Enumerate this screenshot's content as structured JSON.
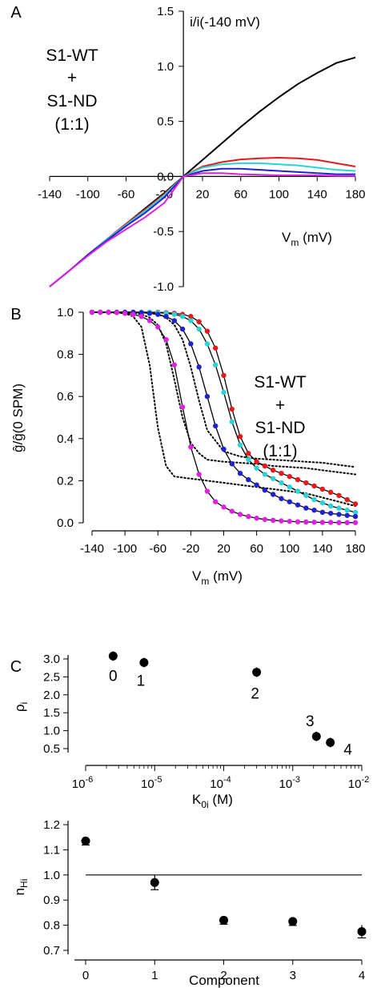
{
  "figure": {
    "panels": {
      "A": {
        "letter": "A",
        "annotation": [
          "S1-WT",
          "+",
          "S1-ND",
          "(1:1)"
        ]
      },
      "B": {
        "letter": "B",
        "annotation": [
          "S1-WT",
          "+",
          "S1-ND",
          "(1:1)"
        ]
      },
      "C": {
        "letter": "C"
      }
    }
  },
  "chart_data": [
    {
      "id": "A",
      "type": "line",
      "ylabel": "i/i(-140 mV)",
      "xlabel_main": "V",
      "xlabel_sub": "m",
      "xlabel_unit": " (mV)",
      "xlim": [
        -140,
        180
      ],
      "ylim": [
        -1.0,
        1.5
      ],
      "x_ticks": [
        -140,
        -100,
        -60,
        -20,
        20,
        60,
        100,
        140,
        180
      ],
      "x_tick_labels": [
        "-140",
        "-100",
        "-60",
        "-20",
        "20",
        "60",
        "100",
        "140",
        "180"
      ],
      "y_ticks": [
        -1.0,
        -0.5,
        0.0,
        0.5,
        1.0,
        1.5
      ],
      "y_tick_labels": [
        "-1.0",
        "-0.5",
        "0.0",
        "0.5",
        "1.0",
        "1.5"
      ],
      "x": [
        -140,
        -120,
        -100,
        -80,
        -60,
        -40,
        -20,
        0,
        20,
        40,
        60,
        80,
        100,
        120,
        140,
        160,
        180
      ],
      "series": [
        {
          "color": "#000000",
          "y": [
            -1.0,
            -0.86,
            -0.71,
            -0.57,
            -0.43,
            -0.29,
            -0.15,
            0.0,
            0.15,
            0.3,
            0.45,
            0.59,
            0.72,
            0.84,
            0.94,
            1.03,
            1.08
          ]
        },
        {
          "color": "#e41a1c",
          "y": [
            -1.0,
            -0.86,
            -0.71,
            -0.57,
            -0.43,
            -0.3,
            -0.16,
            0.0,
            0.09,
            0.13,
            0.155,
            0.165,
            0.17,
            0.165,
            0.15,
            0.12,
            0.09
          ]
        },
        {
          "color": "#2ad4d4",
          "y": [
            -1.0,
            -0.86,
            -0.71,
            -0.57,
            -0.44,
            -0.31,
            -0.17,
            0.0,
            0.08,
            0.11,
            0.12,
            0.12,
            0.11,
            0.1,
            0.08,
            0.06,
            0.05
          ]
        },
        {
          "color": "#2222cc",
          "y": [
            -1.0,
            -0.86,
            -0.71,
            -0.58,
            -0.45,
            -0.33,
            -0.19,
            0.0,
            0.05,
            0.07,
            0.07,
            0.06,
            0.05,
            0.04,
            0.03,
            0.02,
            0.02
          ]
        },
        {
          "color": "#dd22dd",
          "y": [
            -1.0,
            -0.86,
            -0.72,
            -0.59,
            -0.48,
            -0.37,
            -0.24,
            0.0,
            0.03,
            0.03,
            0.02,
            0.015,
            0.01,
            0.01,
            0.01,
            0.005,
            0.005
          ]
        }
      ]
    },
    {
      "id": "B",
      "type": "scatter",
      "ylabel": "ĝ/ĝ(0 SPM)",
      "xlabel_main": "V",
      "xlabel_sub": "m",
      "xlabel_unit": " (mV)",
      "xlim": [
        -140,
        180
      ],
      "ylim": [
        0.0,
        1.0
      ],
      "x_ticks": [
        -140,
        -100,
        -60,
        -20,
        20,
        60,
        100,
        140,
        180
      ],
      "x_tick_labels": [
        "-140",
        "-100",
        "-60",
        "-20",
        "20",
        "60",
        "100",
        "140",
        "180"
      ],
      "y_ticks": [
        0.0,
        0.2,
        0.4,
        0.6,
        0.8,
        1.0
      ],
      "y_tick_labels": [
        "0.0",
        "0.2",
        "0.4",
        "0.6",
        "0.8",
        "1.0"
      ],
      "x_points": [
        -140,
        -130,
        -120,
        -110,
        -100,
        -90,
        -80,
        -70,
        -60,
        -50,
        -40,
        -30,
        -20,
        -10,
        0,
        10,
        20,
        30,
        40,
        50,
        60,
        70,
        80,
        90,
        100,
        110,
        120,
        130,
        140,
        150,
        160,
        170,
        180
      ],
      "series": [
        {
          "color": "#e41a1c",
          "y": [
            1.0,
            1.0,
            1.0,
            1.0,
            1.0,
            1.0,
            1.0,
            1.0,
            1.0,
            0.998,
            0.995,
            0.99,
            0.98,
            0.955,
            0.91,
            0.83,
            0.7,
            0.54,
            0.41,
            0.33,
            0.29,
            0.27,
            0.25,
            0.235,
            0.22,
            0.205,
            0.19,
            0.175,
            0.16,
            0.145,
            0.13,
            0.11,
            0.09
          ]
        },
        {
          "color": "#2ad4d4",
          "y": [
            1.0,
            1.0,
            1.0,
            1.0,
            1.0,
            1.0,
            1.0,
            1.0,
            0.998,
            0.995,
            0.99,
            0.98,
            0.96,
            0.92,
            0.85,
            0.75,
            0.62,
            0.48,
            0.37,
            0.3,
            0.26,
            0.23,
            0.21,
            0.19,
            0.17,
            0.15,
            0.13,
            0.11,
            0.095,
            0.08,
            0.07,
            0.06,
            0.05
          ]
        },
        {
          "color": "#2222cc",
          "y": [
            1.0,
            1.0,
            1.0,
            1.0,
            1.0,
            1.0,
            0.998,
            0.995,
            0.99,
            0.98,
            0.96,
            0.92,
            0.85,
            0.74,
            0.6,
            0.46,
            0.35,
            0.28,
            0.235,
            0.205,
            0.18,
            0.155,
            0.135,
            0.115,
            0.1,
            0.085,
            0.07,
            0.06,
            0.05,
            0.045,
            0.04,
            0.035,
            0.03
          ]
        },
        {
          "color": "#dd22dd",
          "y": [
            1.0,
            1.0,
            1.0,
            0.998,
            0.995,
            0.99,
            0.98,
            0.96,
            0.93,
            0.87,
            0.75,
            0.55,
            0.36,
            0.23,
            0.15,
            0.1,
            0.075,
            0.055,
            0.04,
            0.03,
            0.022,
            0.016,
            0.012,
            0.009,
            0.007,
            0.005,
            0.004,
            0.003,
            0.002,
            0.002,
            0.001,
            0.001,
            0.001
          ]
        }
      ],
      "dotted_x": [
        -140,
        -120,
        -100,
        -90,
        -80,
        -70,
        -60,
        -50,
        -40,
        -30,
        -20,
        -10,
        0,
        20,
        40,
        60,
        80,
        100,
        120,
        140,
        160,
        180
      ],
      "dotted_series": [
        {
          "y": [
            1.0,
            0.999,
            0.995,
            0.98,
            0.93,
            0.75,
            0.45,
            0.27,
            0.22,
            0.215,
            0.21,
            0.205,
            0.2,
            0.19,
            0.18,
            0.17,
            0.16,
            0.15,
            0.14,
            0.12,
            0.1,
            0.08
          ]
        },
        {
          "y": [
            1.0,
            1.0,
            0.999,
            0.997,
            0.99,
            0.975,
            0.94,
            0.85,
            0.68,
            0.5,
            0.38,
            0.33,
            0.3,
            0.29,
            0.285,
            0.28,
            0.27,
            0.265,
            0.26,
            0.25,
            0.24,
            0.23
          ]
        },
        {
          "y": [
            1.0,
            1.0,
            1.0,
            1.0,
            0.999,
            0.997,
            0.99,
            0.975,
            0.94,
            0.87,
            0.74,
            0.58,
            0.44,
            0.34,
            0.315,
            0.305,
            0.3,
            0.295,
            0.29,
            0.285,
            0.275,
            0.265
          ]
        }
      ]
    },
    {
      "id": "C-top",
      "type": "scatter",
      "ylabel": "ρ",
      "ylabel_sub": "i",
      "xlabel_main": "K",
      "xlabel_sub": "0i",
      "xlabel_unit": " (M)",
      "xscale": "log",
      "xlim": [
        1e-06,
        0.01
      ],
      "ylim": [
        0.5,
        3.0
      ],
      "x_tick_exponents": [
        -6,
        -5,
        -4,
        -3,
        -2
      ],
      "x_tick_base": "10",
      "y_ticks": [
        0.5,
        1.0,
        1.5,
        2.0,
        2.5,
        3.0
      ],
      "y_tick_labels": [
        "0.5",
        "1.0",
        "1.5",
        "2.0",
        "2.5",
        "3.0"
      ],
      "points": [
        {
          "label": "0",
          "x": 2.5e-06,
          "y": 3.08
        },
        {
          "label": "1",
          "x": 7e-06,
          "y": 2.9
        },
        {
          "label": "2",
          "x": 0.0003,
          "y": 2.63
        },
        {
          "label": "3",
          "x": 0.0022,
          "y": 0.84
        },
        {
          "label": "4",
          "x": 0.0035,
          "y": 0.67
        }
      ]
    },
    {
      "id": "C-bottom",
      "type": "scatter",
      "ylabel": "n",
      "ylabel_sub": "Hi",
      "xlabel": "Component",
      "xlim": [
        0,
        4
      ],
      "ylim": [
        0.7,
        1.2
      ],
      "x_ticks": [
        0,
        1,
        2,
        3,
        4
      ],
      "x_tick_labels": [
        "0",
        "1",
        "2",
        "3",
        "4"
      ],
      "y_ticks": [
        0.7,
        0.8,
        0.9,
        1.0,
        1.1,
        1.2
      ],
      "y_tick_labels": [
        "0.7",
        "0.8",
        "0.9",
        "1.0",
        "1.1",
        "1.2"
      ],
      "reference_line_y": 1.0,
      "points": [
        {
          "x": 0,
          "y": 1.135
        },
        {
          "x": 1,
          "y": 0.97
        },
        {
          "x": 2,
          "y": 0.82
        },
        {
          "x": 3,
          "y": 0.815
        },
        {
          "x": 4,
          "y": 0.775
        }
      ]
    }
  ]
}
